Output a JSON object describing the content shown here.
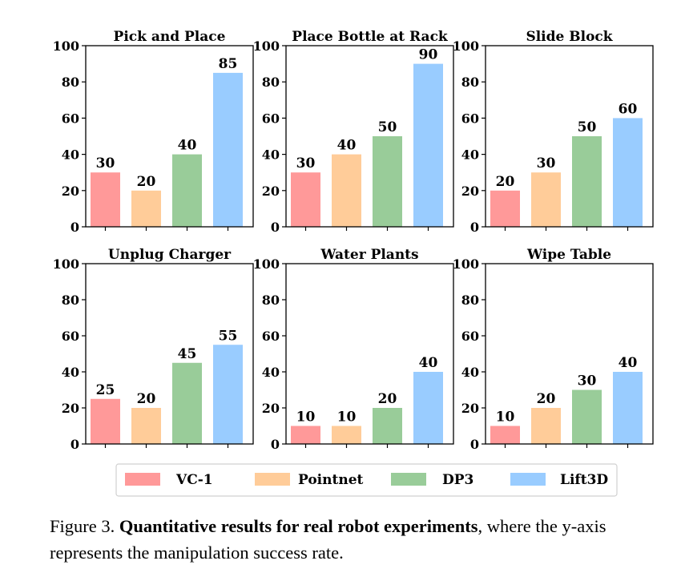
{
  "colors": {
    "VC-1": "#ff9999",
    "Pointnet": "#ffcc99",
    "DP3": "#99cc99",
    "Lift3D": "#99ccff"
  },
  "chart_data": [
    {
      "type": "bar",
      "title": "Pick and Place",
      "categories": [
        "VC-1",
        "Pointnet",
        "DP3",
        "Lift3D"
      ],
      "values": [
        30,
        20,
        40,
        85
      ],
      "ylim": [
        0,
        100
      ],
      "yticks": [
        0,
        20,
        40,
        60,
        80,
        100
      ]
    },
    {
      "type": "bar",
      "title": "Place Bottle at Rack",
      "categories": [
        "VC-1",
        "Pointnet",
        "DP3",
        "Lift3D"
      ],
      "values": [
        30,
        40,
        50,
        90
      ],
      "ylim": [
        0,
        100
      ],
      "yticks": [
        0,
        20,
        40,
        60,
        80,
        100
      ]
    },
    {
      "type": "bar",
      "title": "Slide Block",
      "categories": [
        "VC-1",
        "Pointnet",
        "DP3",
        "Lift3D"
      ],
      "values": [
        20,
        30,
        50,
        60
      ],
      "ylim": [
        0,
        100
      ],
      "yticks": [
        0,
        20,
        40,
        60,
        80,
        100
      ]
    },
    {
      "type": "bar",
      "title": "Unplug Charger",
      "categories": [
        "VC-1",
        "Pointnet",
        "DP3",
        "Lift3D"
      ],
      "values": [
        25,
        20,
        45,
        55
      ],
      "ylim": [
        0,
        100
      ],
      "yticks": [
        0,
        20,
        40,
        60,
        80,
        100
      ]
    },
    {
      "type": "bar",
      "title": "Water Plants",
      "categories": [
        "VC-1",
        "Pointnet",
        "DP3",
        "Lift3D"
      ],
      "values": [
        10,
        10,
        20,
        40
      ],
      "ylim": [
        0,
        100
      ],
      "yticks": [
        0,
        20,
        40,
        60,
        80,
        100
      ]
    },
    {
      "type": "bar",
      "title": "Wipe Table",
      "categories": [
        "VC-1",
        "Pointnet",
        "DP3",
        "Lift3D"
      ],
      "values": [
        10,
        20,
        30,
        40
      ],
      "ylim": [
        0,
        100
      ],
      "yticks": [
        0,
        20,
        40,
        60,
        80,
        100
      ]
    }
  ],
  "legend": {
    "items": [
      "VC-1",
      "Pointnet",
      "DP3",
      "Lift3D"
    ]
  },
  "caption": {
    "prefix": "Figure 3. ",
    "bold": "Quantitative results for real robot experiments",
    "rest": ", where the y-axis represents the manipulation success rate."
  }
}
